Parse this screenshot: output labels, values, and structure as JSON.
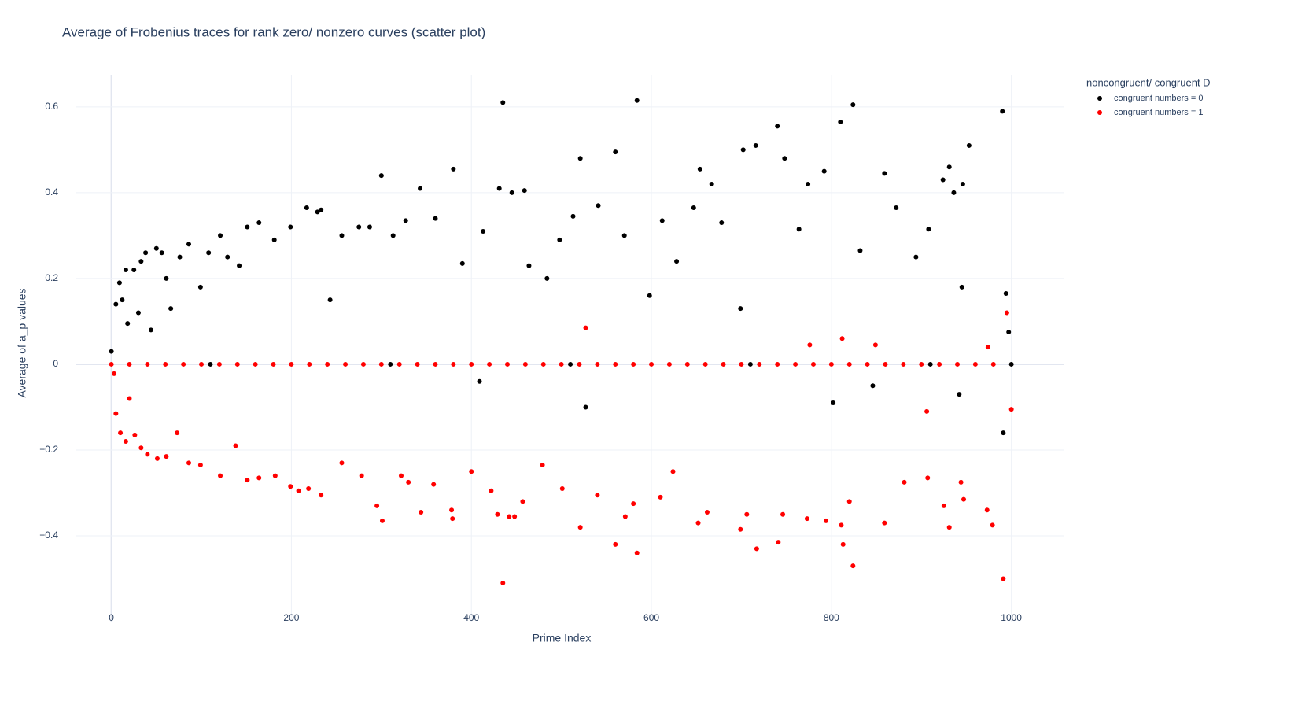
{
  "chart_data": {
    "type": "scatter",
    "title": "Average of Frobenius traces for rank zero/ nonzero curves (scatter plot)",
    "x_label": "Prime Index",
    "y_label": "Average of a_p values",
    "legend_title": "noncongruent/ congruent D",
    "legend_position": "top-right",
    "grid": true,
    "xlim": [
      -39,
      1058
    ],
    "ylim": [
      -0.6,
      0.675
    ],
    "xticks": [
      0,
      200,
      400,
      600,
      800,
      1000
    ],
    "yticks": [
      {
        "value": -0.4,
        "label": "−0.4"
      },
      {
        "value": -0.2,
        "label": "−0.2"
      },
      0,
      0.2,
      0.4,
      0.6
    ],
    "series": [
      {
        "name": "congruent numbers = 0",
        "color": "#000000",
        "x": [
          0,
          5,
          9,
          12,
          16,
          18,
          25,
          30,
          33,
          38,
          44,
          50,
          56,
          61,
          66,
          76,
          86,
          99,
          108,
          121,
          129,
          142,
          151,
          164,
          181,
          199,
          217,
          229,
          233,
          243,
          256,
          275,
          287,
          300,
          313,
          327,
          343,
          360,
          380,
          390,
          413,
          431,
          435,
          445,
          459,
          464,
          484,
          498,
          513,
          521,
          541,
          560,
          570,
          584,
          598,
          612,
          628,
          647,
          654,
          667,
          678,
          699,
          702,
          716,
          740,
          748,
          764,
          774,
          792,
          810,
          824,
          832,
          859,
          872,
          894,
          908,
          924,
          931,
          936,
          945,
          946,
          953,
          990,
          994,
          997,
          991,
          942,
          846,
          802,
          527,
          409,
          1000,
          110,
          310,
          510,
          710,
          910
        ],
        "values": [
          0.03,
          0.14,
          0.19,
          0.15,
          0.22,
          0.095,
          0.22,
          0.12,
          0.24,
          0.26,
          0.08,
          0.27,
          0.26,
          0.2,
          0.13,
          0.25,
          0.28,
          0.18,
          0.26,
          0.3,
          0.25,
          0.23,
          0.32,
          0.33,
          0.29,
          0.32,
          0.365,
          0.355,
          0.36,
          0.15,
          0.3,
          0.32,
          0.32,
          0.44,
          0.3,
          0.335,
          0.41,
          0.34,
          0.455,
          0.235,
          0.31,
          0.41,
          0.61,
          0.4,
          0.405,
          0.23,
          0.2,
          0.29,
          0.345,
          0.48,
          0.37,
          0.495,
          0.3,
          0.615,
          0.16,
          0.335,
          0.24,
          0.365,
          0.455,
          0.42,
          0.33,
          0.13,
          0.5,
          0.51,
          0.555,
          0.48,
          0.315,
          0.42,
          0.45,
          0.565,
          0.605,
          0.265,
          0.445,
          0.365,
          0.25,
          0.315,
          0.43,
          0.46,
          0.4,
          0.18,
          0.42,
          0.51,
          0.59,
          0.165,
          0.075,
          -0.16,
          -0.07,
          -0.05,
          -0.09,
          -0.1,
          -0.04,
          0,
          0,
          0,
          0,
          0,
          0
        ]
      },
      {
        "name": "congruent numbers = 1",
        "color": "#ff0000",
        "x": [
          3,
          5,
          10,
          16,
          20,
          26,
          33,
          40,
          51,
          61,
          73,
          86,
          99,
          121,
          138,
          151,
          164,
          182,
          199,
          208,
          219,
          233,
          256,
          278,
          295,
          301,
          322,
          330,
          344,
          358,
          378,
          379,
          400,
          422,
          429,
          435,
          442,
          448,
          457,
          479,
          501,
          521,
          540,
          560,
          571,
          584,
          580,
          610,
          624,
          652,
          662,
          699,
          706,
          717,
          741,
          746,
          773,
          794,
          811,
          813,
          820,
          824,
          859,
          881,
          907,
          925,
          931,
          944,
          947,
          973,
          979,
          991,
          995,
          527,
          849,
          776,
          812,
          974,
          906,
          1000,
          0,
          20,
          40,
          60,
          80,
          100,
          120,
          140,
          160,
          180,
          200,
          220,
          240,
          260,
          280,
          300,
          320,
          340,
          360,
          380,
          400,
          420,
          440,
          460,
          480,
          500,
          520,
          540,
          560,
          580,
          600,
          620,
          640,
          660,
          680,
          700,
          720,
          740,
          760,
          780,
          800,
          820,
          840,
          860,
          880,
          900,
          920,
          940,
          960,
          980
        ],
        "values": [
          -0.022,
          -0.115,
          -0.16,
          -0.18,
          -0.08,
          -0.165,
          -0.195,
          -0.21,
          -0.22,
          -0.215,
          -0.16,
          -0.23,
          -0.235,
          -0.26,
          -0.19,
          -0.27,
          -0.265,
          -0.26,
          -0.285,
          -0.295,
          -0.29,
          -0.305,
          -0.23,
          -0.26,
          -0.33,
          -0.365,
          -0.26,
          -0.275,
          -0.345,
          -0.28,
          -0.34,
          -0.36,
          -0.25,
          -0.295,
          -0.35,
          -0.51,
          -0.355,
          -0.355,
          -0.32,
          -0.235,
          -0.29,
          -0.38,
          -0.305,
          -0.42,
          -0.355,
          -0.44,
          -0.325,
          -0.31,
          -0.25,
          -0.37,
          -0.345,
          -0.385,
          -0.35,
          -0.43,
          -0.415,
          -0.35,
          -0.36,
          -0.365,
          -0.375,
          -0.42,
          -0.32,
          -0.47,
          -0.37,
          -0.275,
          -0.265,
          -0.33,
          -0.38,
          -0.275,
          -0.315,
          -0.34,
          -0.375,
          -0.5,
          0.12,
          0.085,
          0.045,
          0.045,
          0.06,
          0.04,
          -0.11,
          -0.105,
          0,
          0,
          0,
          0,
          0,
          0,
          0,
          0,
          0,
          0,
          0,
          0,
          0,
          0,
          0,
          0,
          0,
          0,
          0,
          0,
          0,
          0,
          0,
          0,
          0,
          0,
          0,
          0,
          0,
          0,
          0,
          0,
          0,
          0,
          0,
          0,
          0,
          0,
          0,
          0,
          0,
          0,
          0,
          0,
          0,
          0,
          0,
          0,
          0,
          0
        ]
      }
    ]
  }
}
